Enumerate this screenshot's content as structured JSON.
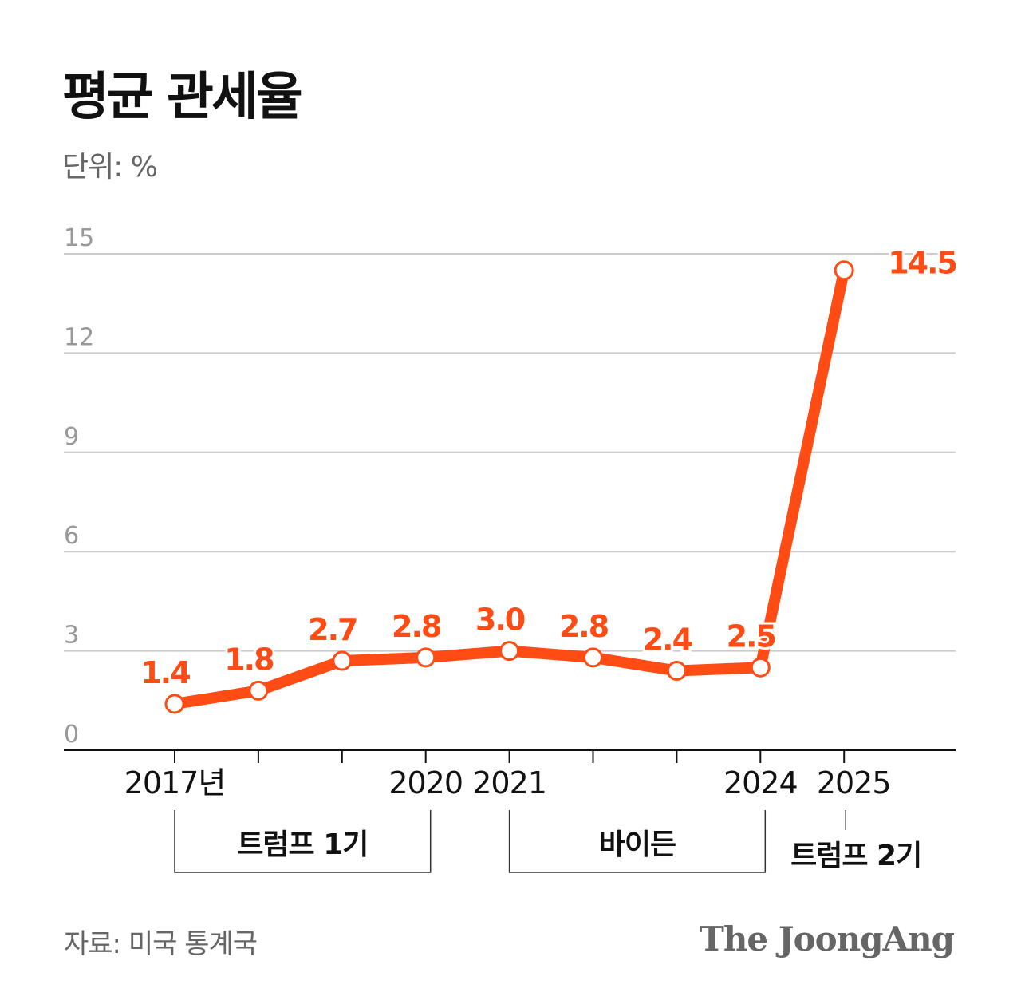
{
  "title": "평균 관세율",
  "unit": "단위: %",
  "source": "자료: 미국 통계국",
  "logo": "The JoongAng",
  "colors": {
    "line": "#ff4b14",
    "grid": "#cccccc",
    "axis": "#111111",
    "tick_label": "#999999"
  },
  "chart_data": {
    "type": "line",
    "title": "평균 관세율",
    "ylabel": "%",
    "x": [
      2017,
      2018,
      2019,
      2020,
      2021,
      2022,
      2023,
      2024,
      2025
    ],
    "values": [
      1.4,
      1.8,
      2.7,
      2.8,
      3.0,
      2.8,
      2.4,
      2.5,
      14.5
    ],
    "data_labels": [
      "1.4",
      "1.8",
      "2.7",
      "2.8",
      "3.0",
      "2.8",
      "2.4",
      "2.5",
      "14.5"
    ],
    "ylim": [
      0,
      15
    ],
    "yticks": [
      0,
      3,
      6,
      9,
      12,
      15
    ],
    "ytick_labels": [
      "0",
      "3",
      "6",
      "9",
      "12",
      "15"
    ],
    "xtick_labels": [
      {
        "year": 2017,
        "label": "2017년"
      },
      {
        "year": 2020,
        "label": "2020"
      },
      {
        "year": 2021,
        "label": "2021"
      },
      {
        "year": 2024,
        "label": "2024"
      },
      {
        "year": 2025,
        "label": "2025"
      }
    ],
    "grid": true,
    "periods": [
      {
        "label": "트럼프 1기",
        "start": 2017,
        "end": 2020
      },
      {
        "label": "바이든",
        "start": 2021,
        "end": 2024
      },
      {
        "label": "트럼프 2기",
        "start": 2025,
        "end": 2025
      }
    ]
  }
}
